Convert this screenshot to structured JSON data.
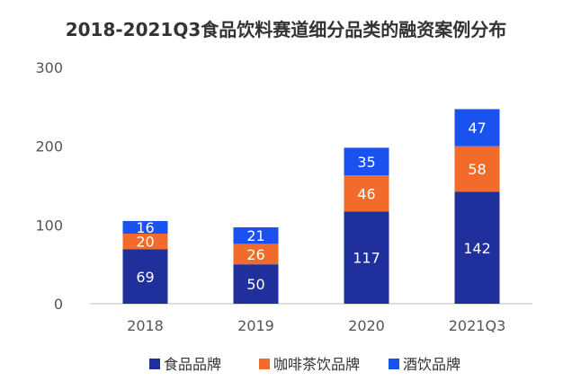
{
  "chart_data": {
    "type": "bar",
    "stacked": true,
    "title": "2018-2021Q3食品饮料赛道细分品类的融资案例分布",
    "categories": [
      "2018",
      "2019",
      "2020",
      "2021Q3"
    ],
    "series": [
      {
        "name": "食品品牌",
        "color": "#1f2f9c",
        "values": [
          69,
          50,
          117,
          142
        ]
      },
      {
        "name": "咖啡茶饮品牌",
        "color": "#f26b2a",
        "values": [
          20,
          26,
          46,
          58
        ]
      },
      {
        "name": "酒饮品牌",
        "color": "#1a52f0",
        "values": [
          16,
          21,
          35,
          47
        ]
      }
    ],
    "ylim": [
      0,
      300
    ],
    "yticks": [
      0,
      100,
      200,
      300
    ],
    "legend": "bottom"
  }
}
